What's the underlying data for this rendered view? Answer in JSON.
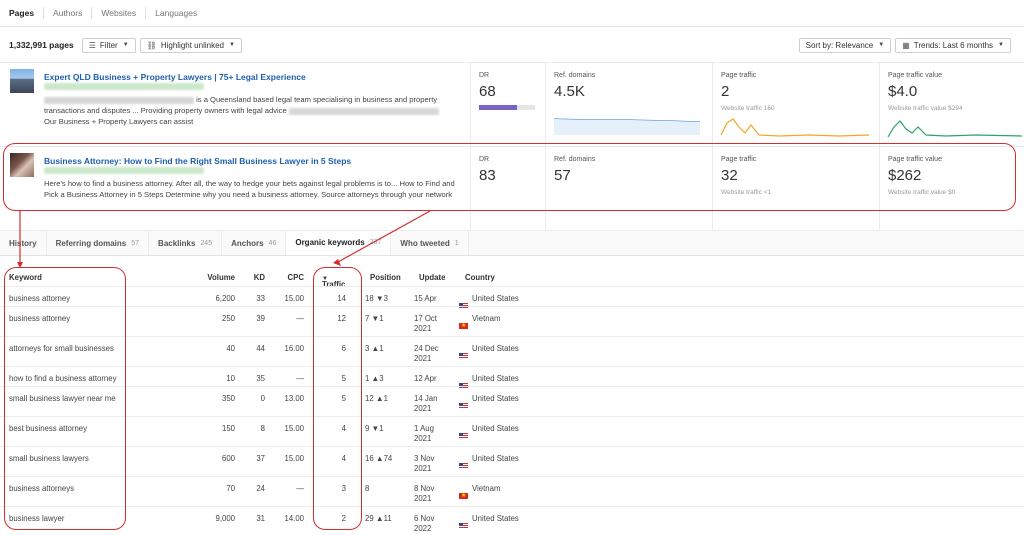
{
  "top_tabs": [
    "Pages",
    "Authors",
    "Websites",
    "Languages"
  ],
  "toolbar": {
    "count": "1,332,991 pages",
    "filter_label": "Filter",
    "highlight_label": "Highlight unlinked",
    "sort_label": "Sort by: Relevance",
    "trends_label": "Trends: Last 6 months"
  },
  "results": [
    {
      "title": "Expert QLD Business + Property Lawyers | 75+ Legal Experience",
      "desc_a": "is a Queensland based legal team specialising in business and property",
      "desc_b": "transactions and disputes ... Providing property owners with legal advice",
      "desc_c": "Our Business + Property Lawyers can assist",
      "dr_label": "DR",
      "dr": "68",
      "dr_fill": 0.68,
      "ref_label": "Ref. domains",
      "ref": "4.5K",
      "traffic_label": "Page traffic",
      "traffic": "2",
      "traffic_sub": "Website traffic 160",
      "value_label": "Page traffic value",
      "value": "$4.0",
      "value_sub": "Website traffic value $294"
    },
    {
      "title": "Business Attorney: How to Find the Right Small Business Lawyer in 5 Steps",
      "desc_a": "Here's how to find a business attorney. After all, the way to hedge your bets against legal problems is to... How to Find and",
      "desc_b": "Pick a Business Attorney in 5 Steps Determine why you need a business attorney. Source attorneys through your network",
      "desc_c": "",
      "dr_label": "DR",
      "dr": "83",
      "ref_label": "Ref. domains",
      "ref": "57",
      "traffic_label": "Page traffic",
      "traffic": "32",
      "traffic_sub": "Website traffic <1",
      "value_label": "Page traffic value",
      "value": "$262",
      "value_sub": "Website traffic value $0"
    }
  ],
  "detail_tabs": [
    {
      "label": "History",
      "count": ""
    },
    {
      "label": "Referring domains",
      "count": "57"
    },
    {
      "label": "Backlinks",
      "count": "245"
    },
    {
      "label": "Anchors",
      "count": "46"
    },
    {
      "label": "Organic keywords",
      "count": "237"
    },
    {
      "label": "Who tweeted",
      "count": "1"
    }
  ],
  "table": {
    "headers": {
      "keyword": "Keyword",
      "volume": "Volume",
      "kd": "KD",
      "cpc": "CPC",
      "traffic": "Traffic",
      "position": "Position",
      "update": "Update",
      "country": "Country"
    },
    "rows": [
      {
        "keyword": "business attorney",
        "volume": "6,200",
        "kd": "33",
        "cpc": "15.00",
        "traffic": "14",
        "pos": "18",
        "dir": "down",
        "change": "3",
        "update1": "15 Apr",
        "update2": "",
        "country": "United States",
        "flag": "us"
      },
      {
        "keyword": "business attorney",
        "volume": "250",
        "kd": "39",
        "cpc": "—",
        "traffic": "12",
        "pos": "7",
        "dir": "down",
        "change": "1",
        "update1": "17 Oct",
        "update2": "2021",
        "country": "Vietnam",
        "flag": "vn"
      },
      {
        "keyword": "attorneys for small businesses",
        "volume": "40",
        "kd": "44",
        "cpc": "16.00",
        "traffic": "6",
        "pos": "3",
        "dir": "up",
        "change": "1",
        "update1": "24 Dec",
        "update2": "2021",
        "country": "United States",
        "flag": "us"
      },
      {
        "keyword": "how to find a business attorney",
        "volume": "10",
        "kd": "35",
        "cpc": "—",
        "traffic": "5",
        "pos": "1",
        "dir": "up",
        "change": "3",
        "update1": "12 Apr",
        "update2": "",
        "country": "United States",
        "flag": "us"
      },
      {
        "keyword": "small business lawyer near me",
        "volume": "350",
        "kd": "0",
        "cpc": "13.00",
        "traffic": "5",
        "pos": "12",
        "dir": "up",
        "change": "1",
        "update1": "14 Jan",
        "update2": "2021",
        "country": "United States",
        "flag": "us"
      },
      {
        "keyword": "best business attorney",
        "volume": "150",
        "kd": "8",
        "cpc": "15.00",
        "traffic": "4",
        "pos": "9",
        "dir": "down",
        "change": "1",
        "update1": "1 Aug",
        "update2": "2021",
        "country": "United States",
        "flag": "us"
      },
      {
        "keyword": "small business lawyers",
        "volume": "600",
        "kd": "37",
        "cpc": "15.00",
        "traffic": "4",
        "pos": "16",
        "dir": "up",
        "change": "74",
        "update1": "3 Nov",
        "update2": "2021",
        "country": "United States",
        "flag": "us"
      },
      {
        "keyword": "business attorneys",
        "volume": "70",
        "kd": "24",
        "cpc": "—",
        "traffic": "3",
        "pos": "8",
        "dir": "",
        "change": "",
        "update1": "8 Nov",
        "update2": "2021",
        "country": "Vietnam",
        "flag": "vn"
      },
      {
        "keyword": "business lawyer",
        "volume": "9,000",
        "kd": "31",
        "cpc": "14.00",
        "traffic": "2",
        "pos": "29",
        "dir": "up",
        "change": "11",
        "update1": "6 Nov",
        "update2": "2022",
        "country": "United States",
        "flag": "us"
      }
    ]
  }
}
